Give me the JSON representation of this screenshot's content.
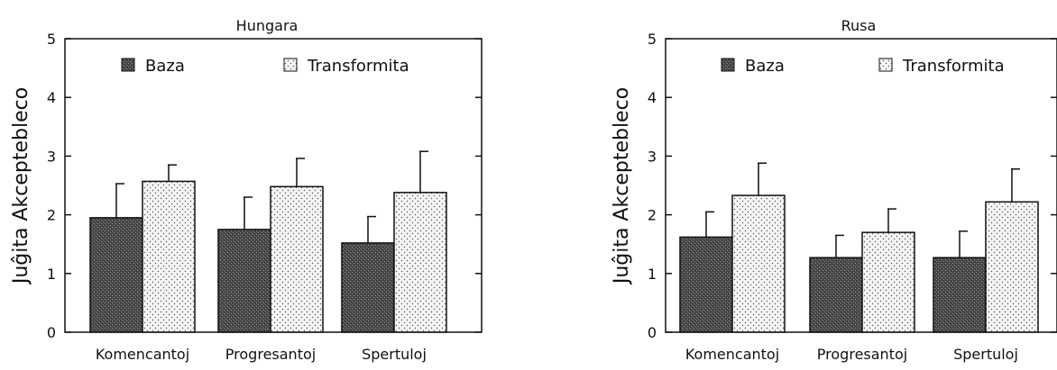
{
  "chart_data": [
    {
      "type": "bar",
      "title": "Hungara",
      "ylabel": "Juĝita Akceptebleco",
      "ylim": [
        0,
        5
      ],
      "yticks": [
        0,
        1,
        2,
        3,
        4,
        5
      ],
      "categories": [
        "Komencantoj",
        "Progresantoj",
        "Spertuloj"
      ],
      "legend_position": "top",
      "series": [
        {
          "name": "Baza",
          "values": [
            1.95,
            1.75,
            1.52
          ],
          "errors": [
            0.58,
            0.55,
            0.45
          ],
          "pattern": "dark-stipple"
        },
        {
          "name": "Transformita",
          "values": [
            2.57,
            2.48,
            2.38
          ],
          "errors": [
            0.28,
            0.48,
            0.7
          ],
          "pattern": "light-dots"
        }
      ]
    },
    {
      "type": "bar",
      "title": "Rusa",
      "ylabel": "Juĝita Akceptebleco",
      "ylim": [
        0,
        5
      ],
      "yticks": [
        0,
        1,
        2,
        3,
        4,
        5
      ],
      "categories": [
        "Komencantoj",
        "Progresantoj",
        "Spertuloj"
      ],
      "legend_position": "top",
      "series": [
        {
          "name": "Baza",
          "values": [
            1.62,
            1.27,
            1.27
          ],
          "errors": [
            0.43,
            0.38,
            0.45
          ],
          "pattern": "dark-stipple"
        },
        {
          "name": "Transformita",
          "values": [
            2.33,
            1.7,
            2.22
          ],
          "errors": [
            0.55,
            0.4,
            0.56
          ],
          "pattern": "light-dots"
        }
      ]
    }
  ]
}
